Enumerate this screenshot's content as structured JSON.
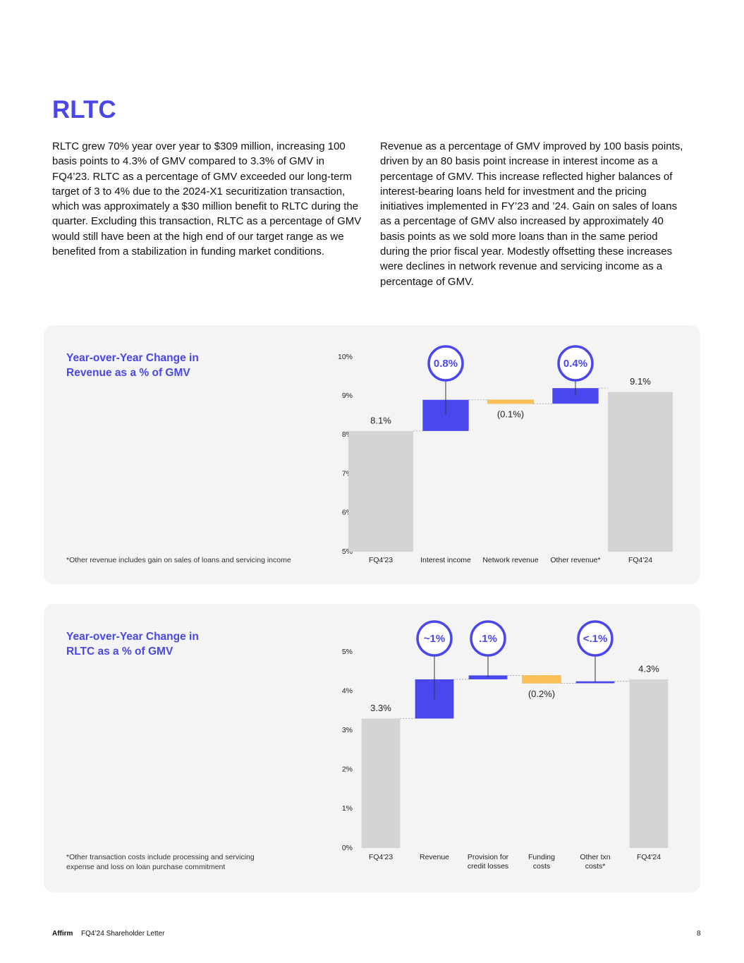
{
  "page": {
    "title": "RLTC",
    "paragraphs": [
      "RLTC grew 70% year over year to $309 million, increasing 100 basis points to 4.3% of GMV compared to 3.3% of GMV in FQ4’23. RLTC as a percentage of GMV exceeded our long-term target of 3 to 4% due to the 2024-X1 securitization transaction, which was approximately a $30 million benefit to RLTC during the quarter. Excluding this transaction, RLTC as a percentage of GMV would still have been at the high end of our target range as we benefited from a stabilization in funding market conditions.",
      "Revenue as a percentage of GMV improved by 100 basis points, driven by an 80 basis point increase in interest income as a percentage of GMV. This increase reflected higher balances of interest-bearing loans held for investment and the pricing initiatives implemented in FY’23 and ’24. Gain on sales of loans as a percentage of GMV also increased by approximately 40 basis points as we sold more loans than in the same period during the prior fiscal year. Modestly offsetting these increases were declines in network revenue and servicing income as a percentage of GMV."
    ],
    "footer": {
      "brand": "Affirm",
      "document": "FQ4’24 Shareholder Letter",
      "page_number": "8"
    }
  },
  "chart_data": [
    {
      "type": "waterfall",
      "title": "Year-over-Year Change in Revenue as a % of GMV",
      "note": "*Other revenue includes gain on sales of loans and servicing income",
      "categories": [
        "FQ4'23",
        "Interest income",
        "Network revenue",
        "Other revenue*",
        "FQ4'24"
      ],
      "kinds": [
        "total",
        "delta",
        "delta",
        "delta",
        "total"
      ],
      "values": [
        8.1,
        0.8,
        -0.1,
        0.4,
        9.1
      ],
      "value_labels": [
        "8.1%",
        "0.8%",
        "(0.1%)",
        "0.4%",
        "9.1%"
      ],
      "ylim": [
        5,
        10
      ],
      "yticks": [
        {
          "value": 5,
          "label": "5%"
        },
        {
          "value": 6,
          "label": "6%"
        },
        {
          "value": 7,
          "label": "7%"
        },
        {
          "value": 8,
          "label": "8%"
        },
        {
          "value": 9,
          "label": "9%"
        },
        {
          "value": 10,
          "label": "10%"
        }
      ],
      "colors": {
        "total": "#d4d4d6",
        "increase": "#4a47ee",
        "decrease": "#fbc158"
      }
    },
    {
      "type": "waterfall",
      "title": "Year-over-Year Change in RLTC as a % of GMV",
      "note": "*Other transaction costs include processing and servicing expense and loss on loan purchase commitment",
      "categories": [
        "FQ4'23",
        "Revenue",
        "Provision for credit losses",
        "Funding costs",
        "Other txn costs*",
        "FQ4'24"
      ],
      "kinds": [
        "total",
        "delta",
        "delta",
        "delta",
        "delta",
        "total"
      ],
      "values": [
        3.3,
        1,
        0.1,
        -0.2,
        0.05,
        4.3
      ],
      "value_labels": [
        "3.3%",
        "~1%",
        ".1%",
        "(0.2%)",
        "<.1%",
        "4.3%"
      ],
      "ylim": [
        0,
        5
      ],
      "yticks": [
        {
          "value": 0,
          "label": "0%"
        },
        {
          "value": 1,
          "label": "1%"
        },
        {
          "value": 2,
          "label": "2%"
        },
        {
          "value": 3,
          "label": "3%"
        },
        {
          "value": 4,
          "label": "4%"
        },
        {
          "value": 5,
          "label": "5%"
        }
      ],
      "colors": {
        "total": "#d4d4d6",
        "increase": "#4a47ee",
        "decrease": "#fbc158"
      }
    }
  ]
}
